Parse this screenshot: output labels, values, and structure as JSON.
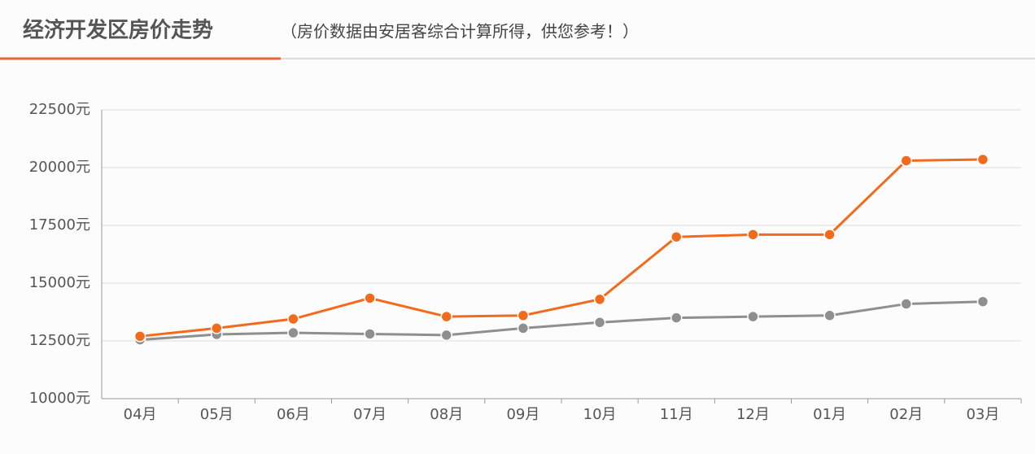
{
  "chart_data": {
    "type": "line",
    "title": "经济开发区房价走势",
    "subtitle": "（房价数据由安居客综合计算所得，供您参考！）",
    "categories": [
      "04月",
      "05月",
      "06月",
      "07月",
      "08月",
      "09月",
      "10月",
      "11月",
      "12月",
      "01月",
      "02月",
      "03月"
    ],
    "series": [
      {
        "color": "#f26b1d",
        "values": [
          12700,
          13050,
          13450,
          14350,
          13550,
          13600,
          14300,
          17000,
          17100,
          17100,
          20300,
          20350
        ]
      },
      {
        "color": "#8f8f8f",
        "values": [
          12550,
          12780,
          12850,
          12800,
          12750,
          13050,
          13300,
          13500,
          13550,
          13600,
          14100,
          14200
        ]
      }
    ],
    "ylim": [
      10000,
      22500
    ],
    "yticks": [
      {
        "value": 10000,
        "label": "10000元"
      },
      {
        "value": 12500,
        "label": "12500元"
      },
      {
        "value": 15000,
        "label": "15000元"
      },
      {
        "value": 17500,
        "label": "17500元"
      },
      {
        "value": 20000,
        "label": "20000元"
      },
      {
        "value": 22500,
        "label": "22500元"
      }
    ],
    "grid": true
  }
}
